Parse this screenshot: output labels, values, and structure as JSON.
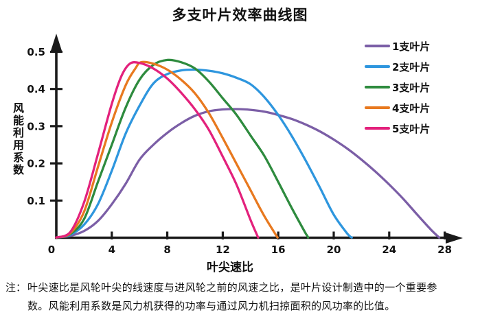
{
  "page": {
    "background": "#ffffff"
  },
  "chart_data": {
    "type": "line",
    "title": "多支叶片效率曲线图",
    "xlabel": "叶尖速比",
    "ylabel": "风能利用系数",
    "xlim": [
      0,
      28.6
    ],
    "ylim": [
      0,
      0.5
    ],
    "x_ticks": [
      4,
      8,
      12,
      16,
      20,
      24,
      28
    ],
    "y_ticks": [
      0.1,
      0.2,
      0.3,
      0.4,
      0.5
    ],
    "origin_label": "0",
    "grid": false,
    "legend_position": "right",
    "axis_color": "#1a1a1a",
    "series": [
      {
        "name": "1支叶片",
        "color": "#7B5EA6",
        "points": [
          [
            0,
            0
          ],
          [
            1,
            0.005
          ],
          [
            2,
            0.018
          ],
          [
            3,
            0.045
          ],
          [
            4,
            0.09
          ],
          [
            5,
            0.145
          ],
          [
            6,
            0.21
          ],
          [
            7,
            0.25
          ],
          [
            8,
            0.282
          ],
          [
            9,
            0.308
          ],
          [
            10,
            0.328
          ],
          [
            11,
            0.34
          ],
          [
            12,
            0.345
          ],
          [
            13,
            0.346
          ],
          [
            14,
            0.344
          ],
          [
            15,
            0.339
          ],
          [
            16,
            0.33
          ],
          [
            17,
            0.319
          ],
          [
            18,
            0.304
          ],
          [
            19,
            0.286
          ],
          [
            20,
            0.264
          ],
          [
            21,
            0.239
          ],
          [
            22,
            0.21
          ],
          [
            23,
            0.178
          ],
          [
            24,
            0.143
          ],
          [
            25,
            0.105
          ],
          [
            26,
            0.063
          ],
          [
            27,
            0.022
          ],
          [
            27.6,
            0
          ]
        ]
      },
      {
        "name": "2支叶片",
        "color": "#2E96DE",
        "points": [
          [
            0,
            0
          ],
          [
            1,
            0.008
          ],
          [
            2,
            0.035
          ],
          [
            3,
            0.09
          ],
          [
            4,
            0.18
          ],
          [
            5,
            0.28
          ],
          [
            6,
            0.355
          ],
          [
            7,
            0.415
          ],
          [
            8,
            0.44
          ],
          [
            9,
            0.45
          ],
          [
            10,
            0.452
          ],
          [
            11,
            0.449
          ],
          [
            12,
            0.442
          ],
          [
            13,
            0.43
          ],
          [
            14,
            0.413
          ],
          [
            15,
            0.378
          ],
          [
            16,
            0.33
          ],
          [
            17,
            0.272
          ],
          [
            18,
            0.206
          ],
          [
            19,
            0.135
          ],
          [
            20,
            0.062
          ],
          [
            21,
            0.01
          ],
          [
            21.3,
            0
          ]
        ]
      },
      {
        "name": "3支叶片",
        "color": "#2E8B3E",
        "points": [
          [
            0,
            0
          ],
          [
            1,
            0.01
          ],
          [
            2,
            0.05
          ],
          [
            3,
            0.15
          ],
          [
            4,
            0.25
          ],
          [
            5,
            0.35
          ],
          [
            6,
            0.425
          ],
          [
            7,
            0.465
          ],
          [
            8,
            0.478
          ],
          [
            9,
            0.472
          ],
          [
            10,
            0.455
          ],
          [
            11,
            0.42
          ],
          [
            12,
            0.375
          ],
          [
            13,
            0.33
          ],
          [
            14,
            0.275
          ],
          [
            15,
            0.22
          ],
          [
            16,
            0.15
          ],
          [
            17,
            0.078
          ],
          [
            18,
            0.01
          ],
          [
            18.15,
            0
          ]
        ]
      },
      {
        "name": "4支叶片",
        "color": "#E8791F",
        "points": [
          [
            0,
            0
          ],
          [
            1,
            0.012
          ],
          [
            2,
            0.07
          ],
          [
            3,
            0.19
          ],
          [
            4,
            0.31
          ],
          [
            5,
            0.41
          ],
          [
            5.7,
            0.455
          ],
          [
            6.1,
            0.472
          ],
          [
            7,
            0.468
          ],
          [
            8,
            0.452
          ],
          [
            9,
            0.425
          ],
          [
            10,
            0.388
          ],
          [
            11,
            0.335
          ],
          [
            12,
            0.268
          ],
          [
            13,
            0.198
          ],
          [
            14,
            0.128
          ],
          [
            15,
            0.058
          ],
          [
            15.95,
            0
          ]
        ]
      },
      {
        "name": "5支叶片",
        "color": "#E3217C",
        "points": [
          [
            0,
            0
          ],
          [
            1,
            0.015
          ],
          [
            2,
            0.095
          ],
          [
            3,
            0.225
          ],
          [
            4,
            0.36
          ],
          [
            4.7,
            0.435
          ],
          [
            5.3,
            0.468
          ],
          [
            6,
            0.47
          ],
          [
            7,
            0.455
          ],
          [
            8,
            0.428
          ],
          [
            9,
            0.39
          ],
          [
            10,
            0.345
          ],
          [
            11,
            0.29
          ],
          [
            12,
            0.218
          ],
          [
            13,
            0.142
          ],
          [
            14,
            0.048
          ],
          [
            14.55,
            0
          ]
        ]
      }
    ]
  },
  "note": {
    "label": "注：",
    "lines": [
      "叶尖速比是风轮叶尖的线速度与进风轮之前的风速之比，是叶片设计制造中的一个重要参",
      "数。风能利用系数是风力机获得的功率与通过风力机扫掠面积的风功率的比值。"
    ]
  }
}
